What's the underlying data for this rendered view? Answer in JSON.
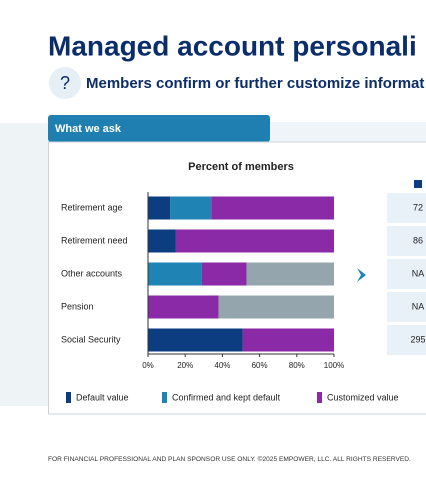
{
  "title": "Managed account personali",
  "subtitle": "Members confirm or further customize informat",
  "tab": "What we ask",
  "chart_data": {
    "type": "stacked-hbar",
    "title": "Percent of members",
    "categories": [
      "Retirement age",
      "Retirement need",
      "Other accounts",
      "Pension",
      "Social Security"
    ],
    "series": [
      {
        "name": "Default value",
        "color": "#0b3d80",
        "values": [
          12,
          15,
          0,
          0,
          51
        ]
      },
      {
        "name": "Confirmed and kept default",
        "color": "#1f84b4",
        "values": [
          22,
          0,
          29,
          0,
          0
        ]
      },
      {
        "name": "Customized value",
        "color": "#8a2aa6",
        "values": [
          66,
          85,
          24,
          38,
          49
        ]
      },
      {
        "name": null,
        "color": "#95a5ad",
        "values": [
          0,
          0,
          47,
          62,
          0
        ]
      }
    ],
    "xlim": [
      0,
      100
    ],
    "xticks": [
      {
        "value": 0,
        "label": "0%"
      },
      {
        "value": 20,
        "label": "20%"
      },
      {
        "value": 40,
        "label": "40%"
      },
      {
        "value": 60,
        "label": "60%"
      },
      {
        "value": 80,
        "label": "80%"
      },
      {
        "value": 100,
        "label": "100%"
      }
    ]
  },
  "side_table": {
    "values": [
      "72",
      "86",
      "NA",
      "NA",
      "295"
    ]
  },
  "footer": "FOR FINANCIAL PROFESSIONAL AND PLAN SPONSOR USE ONLY. ©2025 EMPOWER, LLC. ALL RIGHTS RESERVED."
}
